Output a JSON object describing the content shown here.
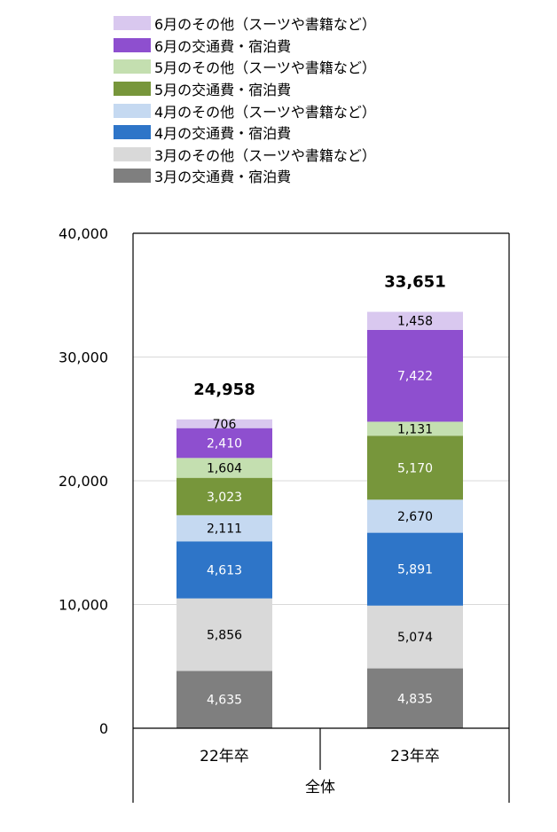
{
  "chart_data": {
    "type": "bar",
    "stacked": true,
    "categories": [
      "22年卒",
      "23年卒"
    ],
    "group_label": "全体",
    "y_ticks": [
      "0",
      "10,000",
      "20,000",
      "30,000",
      "40,000"
    ],
    "ylim": [
      0,
      40000
    ],
    "grid": true,
    "legend_position": "top",
    "totals": [
      24958,
      33651
    ],
    "total_labels": [
      "24,958",
      "33,651"
    ],
    "series": [
      {
        "name": "3月の交通費・宿泊費",
        "color": "#7f7f7f",
        "values": [
          4635,
          4835
        ],
        "labels": [
          "4,635",
          "4,835"
        ],
        "label_color": "#ffffff"
      },
      {
        "name": "3月のその他（スーツや書籍など）",
        "color": "#d9d9d9",
        "values": [
          5856,
          5074
        ],
        "labels": [
          "5,856",
          "5,074"
        ],
        "label_color": "#000000"
      },
      {
        "name": "4月の交通費・宿泊費",
        "color": "#2e75c8",
        "values": [
          4613,
          5891
        ],
        "labels": [
          "4,613",
          "5,891"
        ],
        "label_color": "#ffffff"
      },
      {
        "name": "4月のその他（スーツや書籍など）",
        "color": "#c5d9f1",
        "values": [
          2111,
          2670
        ],
        "labels": [
          "2,111",
          "2,670"
        ],
        "label_color": "#000000"
      },
      {
        "name": "5月の交通費・宿泊費",
        "color": "#77963b",
        "values": [
          3023,
          5170
        ],
        "labels": [
          "3,023",
          "5,170"
        ],
        "label_color": "#ffffff"
      },
      {
        "name": "5月のその他（スーツや書籍など）",
        "color": "#c4dfb0",
        "values": [
          1604,
          1131
        ],
        "labels": [
          "1,604",
          "1,131"
        ],
        "label_color": "#000000"
      },
      {
        "name": "6月の交通費・宿泊費",
        "color": "#8e4fcf",
        "values": [
          2410,
          7422
        ],
        "labels": [
          "2,410",
          "7,422"
        ],
        "label_color": "#ffffff"
      },
      {
        "name": "6月のその他（スーツや書籍など）",
        "color": "#d9c8ef",
        "values": [
          706,
          1458
        ],
        "labels": [
          "706",
          "1,458"
        ],
        "label_color": "#000000"
      }
    ]
  }
}
